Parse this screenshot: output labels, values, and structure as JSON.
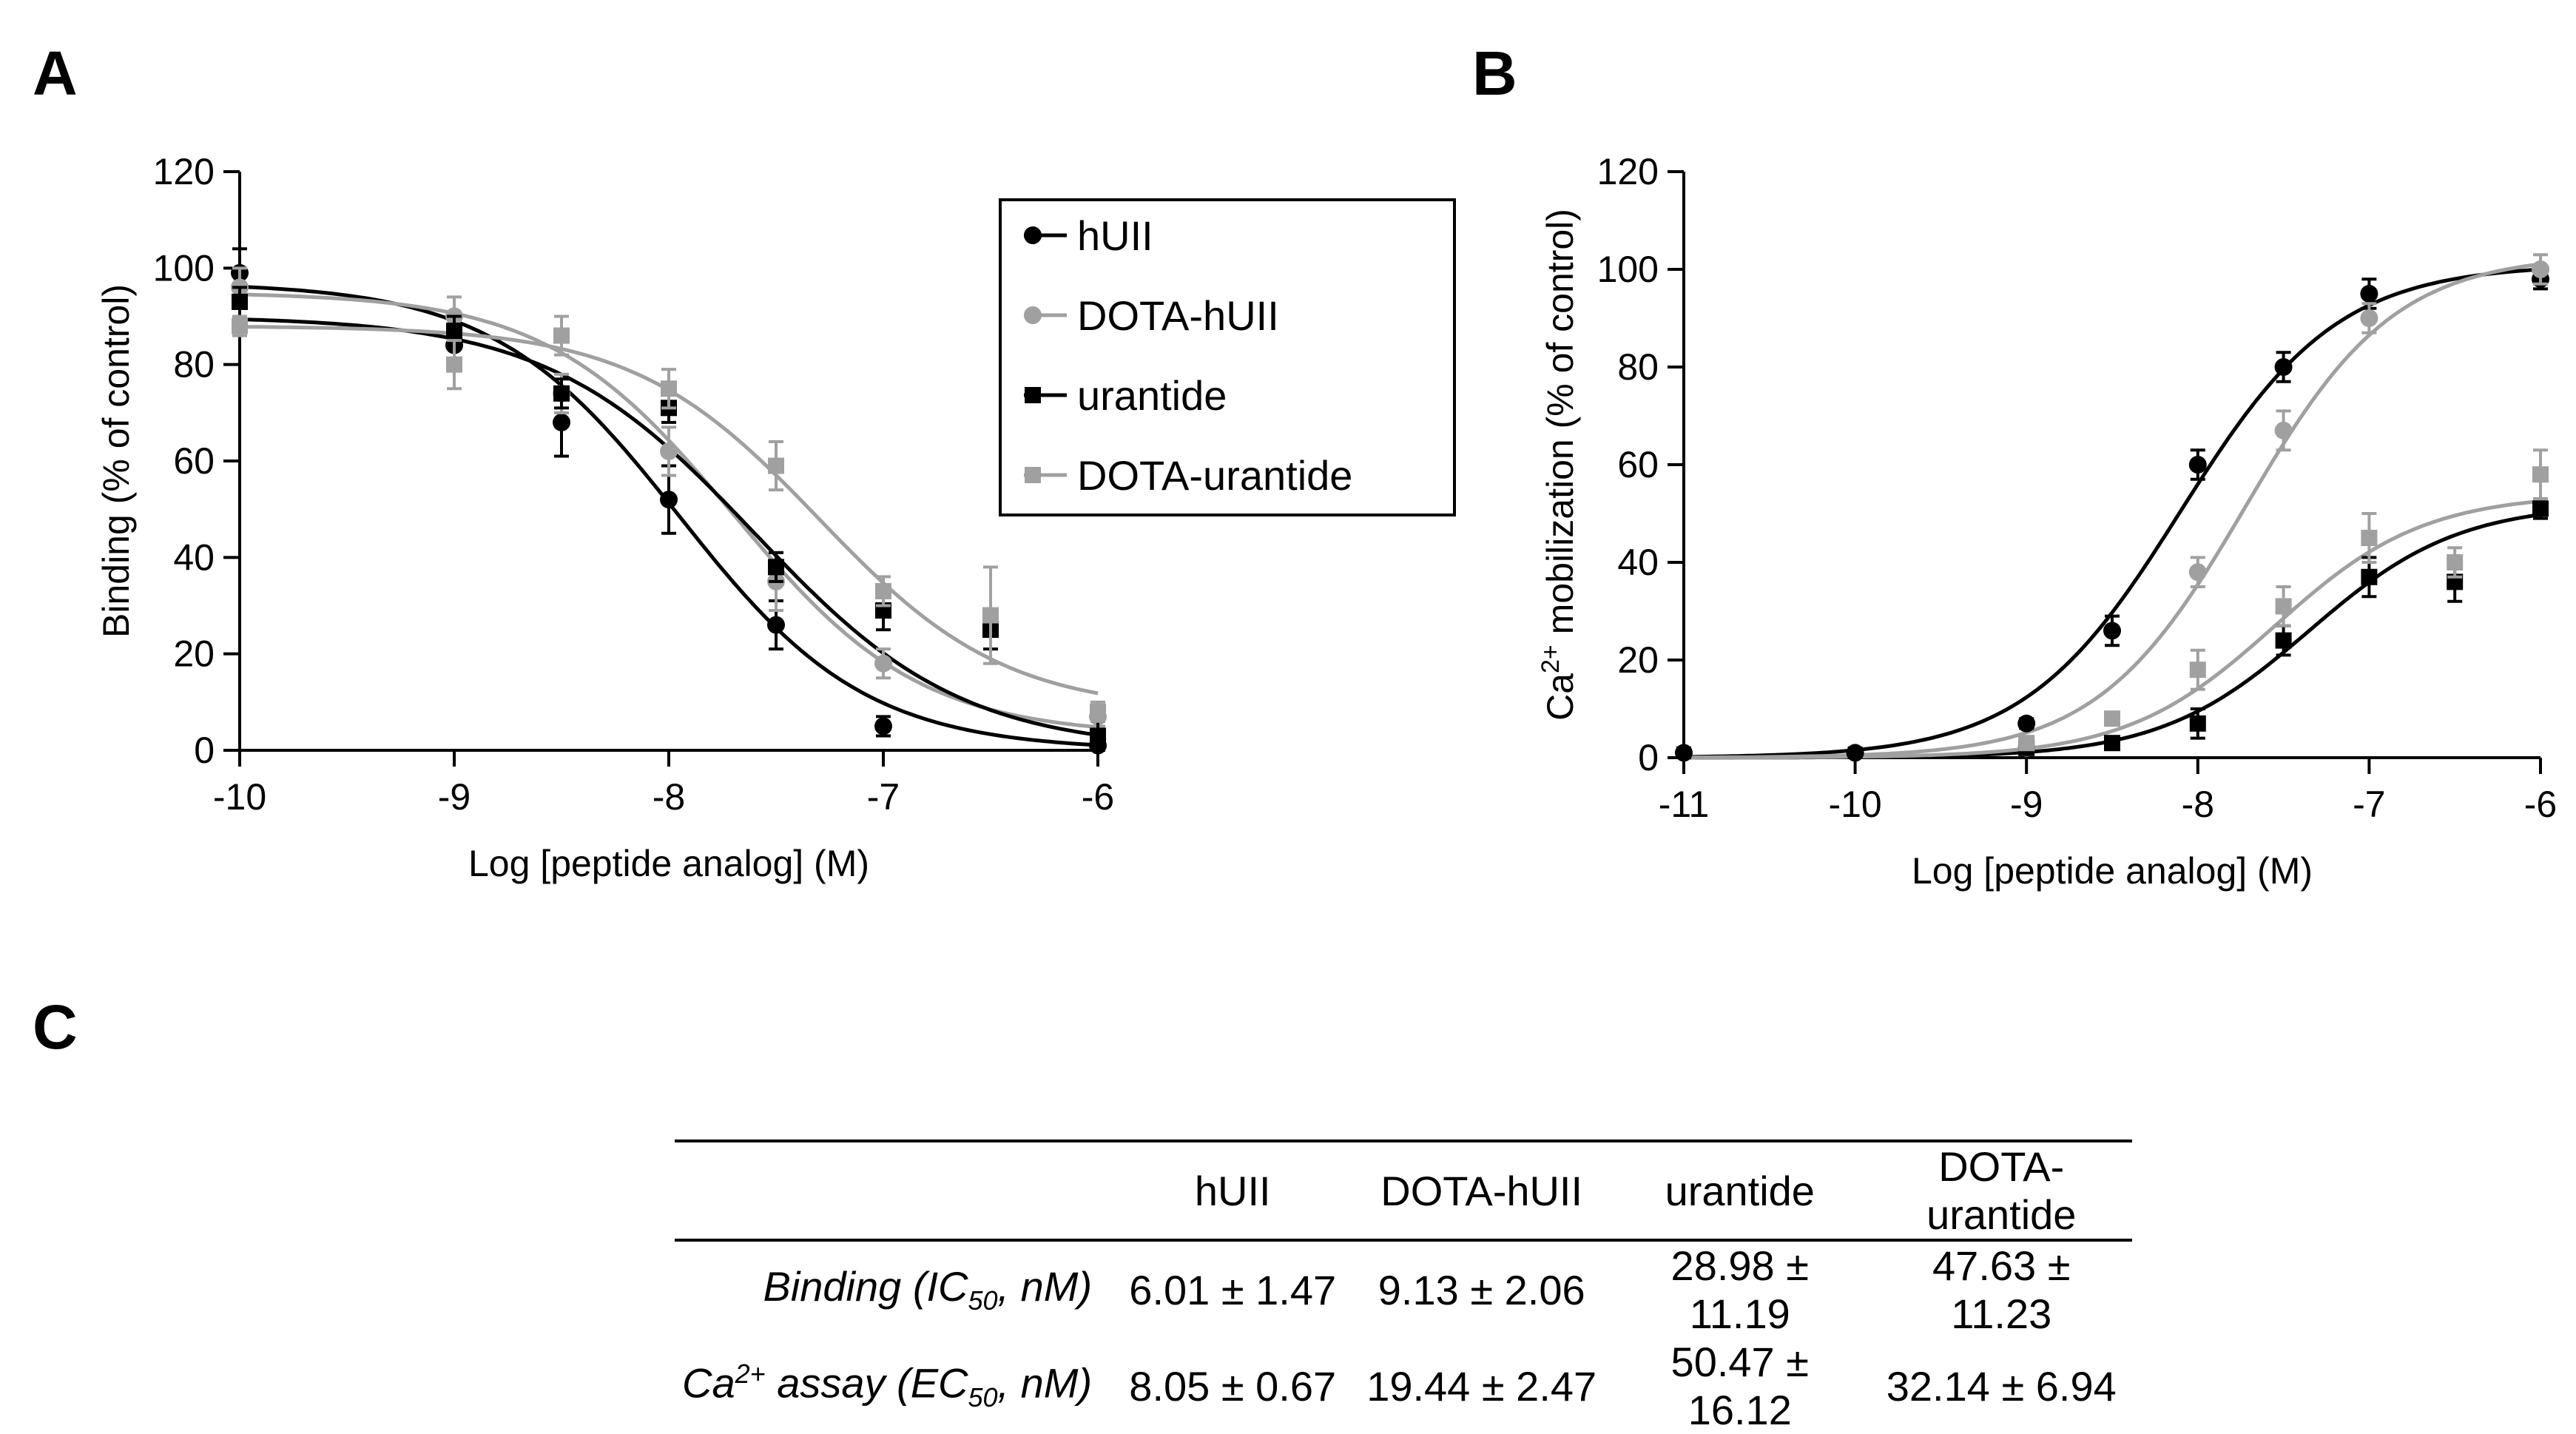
{
  "panel_letters": {
    "a": "A",
    "b": "B",
    "c": "C"
  },
  "chart_data": [
    {
      "id": "A",
      "type": "scatter",
      "title": "",
      "xlabel": "Log [peptide analog] (M)",
      "ylabel": "Binding (% of control)",
      "xlim": [
        -10,
        -6
      ],
      "ylim": [
        0,
        120
      ],
      "xticks": [
        -10,
        -9,
        -8,
        -7,
        -6
      ],
      "yticks": [
        0,
        20,
        40,
        60,
        80,
        100,
        120
      ],
      "legend": {
        "placement": "top-right",
        "entries": [
          "hUII",
          "DOTA-hUII",
          "urantide",
          "DOTA-urantide"
        ]
      },
      "series": [
        {
          "name": "hUII",
          "color": "#000000",
          "marker": "circle",
          "x": [
            -10,
            -9,
            -8.5,
            -8,
            -7.5,
            -7,
            -6
          ],
          "y": [
            99,
            84,
            68,
            52,
            26,
            5,
            1
          ],
          "err": [
            5,
            3,
            7,
            7,
            5,
            2,
            2
          ],
          "fit": {
            "top": 97,
            "bottom": 0,
            "logEC50": -7.95,
            "hill": 1.0
          }
        },
        {
          "name": "DOTA-hUII",
          "color": "#a0a0a0",
          "marker": "circle",
          "x": [
            -10,
            -9,
            -8.5,
            -8,
            -7.5,
            -7,
            -6
          ],
          "y": [
            96,
            90,
            74,
            62,
            35,
            18,
            7
          ],
          "err": [
            4,
            4,
            4,
            5,
            6,
            3,
            2
          ],
          "fit": {
            "top": 95,
            "bottom": 3,
            "logEC50": -7.7,
            "hill": 1.0
          }
        },
        {
          "name": "urantide",
          "color": "#000000",
          "marker": "square",
          "x": [
            -10,
            -9,
            -8.5,
            -8,
            -7.5,
            -7,
            -6.5,
            -6
          ],
          "y": [
            93,
            87,
            74,
            71,
            38,
            29,
            25,
            3
          ],
          "err": [
            3,
            3,
            3,
            3,
            3,
            4,
            4,
            3
          ],
          "fit": {
            "top": 90,
            "bottom": 0,
            "logEC50": -7.6,
            "hill": 0.9
          }
        },
        {
          "name": "DOTA-urantide",
          "color": "#a0a0a0",
          "marker": "square",
          "x": [
            -10,
            -9,
            -8.5,
            -8,
            -7.5,
            -7,
            -6.5,
            -6
          ],
          "y": [
            88,
            80,
            86,
            75,
            59,
            33,
            28,
            8
          ],
          "err": [
            2,
            5,
            4,
            4,
            5,
            3,
            10,
            2
          ],
          "fit": {
            "top": 88,
            "bottom": 8,
            "logEC50": -7.3,
            "hill": 1.0
          }
        }
      ]
    },
    {
      "id": "B",
      "type": "scatter",
      "title": "",
      "xlabel": "Log [peptide analog] (M)",
      "ylabel_prefix": "Ca",
      "ylabel_superscript": "2+",
      "ylabel_suffix": " mobilization  (% of control)",
      "xlim": [
        -11,
        -6
      ],
      "ylim": [
        0,
        120
      ],
      "xticks": [
        -11,
        -10,
        -9,
        -8,
        -7,
        -6
      ],
      "yticks": [
        0,
        20,
        40,
        60,
        80,
        100,
        120
      ],
      "series": [
        {
          "name": "hUII",
          "color": "#000000",
          "marker": "circle",
          "x": [
            -11,
            -10,
            -9,
            -8.5,
            -8,
            -7.5,
            -7,
            -6
          ],
          "y": [
            1,
            1,
            7,
            26,
            60,
            80,
            95,
            98
          ],
          "err": [
            1,
            1,
            1,
            3,
            3,
            3,
            3,
            2
          ],
          "fit": {
            "top": 101,
            "bottom": 0,
            "logEC50": -8.1,
            "hill": 0.95
          }
        },
        {
          "name": "DOTA-hUII",
          "color": "#a0a0a0",
          "marker": "circle",
          "x": [
            -9,
            -8,
            -7.5,
            -7,
            -6
          ],
          "y": [
            2,
            38,
            67,
            90,
            100
          ],
          "err": [
            1,
            3,
            4,
            3,
            3
          ],
          "fit": {
            "top": 103,
            "bottom": 0,
            "logEC50": -7.72,
            "hill": 1.0
          }
        },
        {
          "name": "urantide",
          "color": "#000000",
          "marker": "square",
          "x": [
            -9,
            -8.5,
            -8,
            -7.5,
            -7,
            -6.5,
            -6
          ],
          "y": [
            2,
            3,
            7,
            24,
            37,
            36,
            51
          ],
          "err": [
            1,
            1,
            3,
            3,
            4,
            4,
            2
          ],
          "fit": {
            "top": 52,
            "bottom": 0,
            "logEC50": -7.35,
            "hill": 1.0
          }
        },
        {
          "name": "DOTA-urantide",
          "color": "#a0a0a0",
          "marker": "square",
          "x": [
            -9,
            -8.5,
            -8,
            -7.5,
            -7,
            -6.5,
            -6
          ],
          "y": [
            3,
            8,
            18,
            31,
            45,
            40,
            58
          ],
          "err": [
            1,
            1,
            4,
            4,
            5,
            3,
            5
          ],
          "fit": {
            "top": 54,
            "bottom": 0,
            "logEC50": -7.55,
            "hill": 1.0
          }
        }
      ]
    }
  ],
  "table": {
    "headers": [
      "hUII",
      "DOTA-hUII",
      "urantide",
      "DOTA-urantide"
    ],
    "rows": [
      {
        "label_main": "Binding (IC",
        "label_sub": "50",
        "label_end": ", nM)",
        "values": [
          "6.01 ± 1.47",
          "9.13 ± 2.06",
          "28.98 ± 11.19",
          "47.63 ± 11.23"
        ]
      },
      {
        "label_main": "Ca",
        "label_sup": "2+",
        "label_mid": " assay (EC",
        "label_sub": "50",
        "label_end": ", nM)",
        "values": [
          "8.05 ± 0.67",
          "19.44 ± 2.47",
          "50.47 ± 16.12",
          "32.14 ± 6.94"
        ]
      }
    ]
  }
}
